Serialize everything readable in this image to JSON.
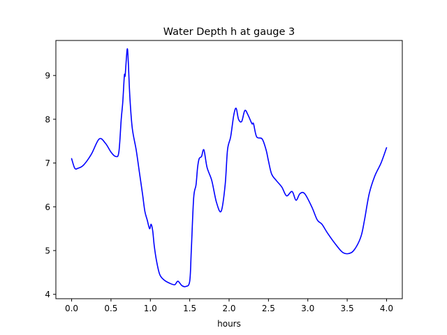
{
  "chart_data": {
    "type": "line",
    "title": "Water Depth h at gauge 3",
    "xlabel": "hours",
    "ylabel": "",
    "xlim": [
      -0.2,
      4.2
    ],
    "ylim": [
      3.9,
      9.8
    ],
    "xticks": [
      0.0,
      0.5,
      1.0,
      1.5,
      2.0,
      2.5,
      3.0,
      3.5,
      4.0
    ],
    "xtick_labels": [
      "0.0",
      "0.5",
      "1.0",
      "1.5",
      "2.0",
      "2.5",
      "3.0",
      "3.5",
      "4.0"
    ],
    "yticks": [
      4,
      5,
      6,
      7,
      8,
      9
    ],
    "ytick_labels": [
      "4",
      "5",
      "6",
      "7",
      "8",
      "9"
    ],
    "grid": false,
    "series": [
      {
        "color": "#0000ff",
        "x": [
          0.0,
          0.04,
          0.08,
          0.15,
          0.25,
          0.35,
          0.43,
          0.5,
          0.56,
          0.6,
          0.63,
          0.65,
          0.67,
          0.68,
          0.7,
          0.71,
          0.72,
          0.74,
          0.77,
          0.82,
          0.86,
          0.9,
          0.93,
          0.96,
          0.99,
          1.01,
          1.03,
          1.05,
          1.08,
          1.12,
          1.18,
          1.25,
          1.31,
          1.35,
          1.4,
          1.45,
          1.5,
          1.52,
          1.55,
          1.58,
          1.6,
          1.62,
          1.65,
          1.68,
          1.72,
          1.78,
          1.84,
          1.9,
          1.95,
          1.98,
          2.02,
          2.06,
          2.09,
          2.12,
          2.16,
          2.2,
          2.24,
          2.29,
          2.31,
          2.35,
          2.42,
          2.47,
          2.5,
          2.54,
          2.6,
          2.67,
          2.73,
          2.8,
          2.85,
          2.9,
          2.96,
          3.05,
          3.12,
          3.18,
          3.25,
          3.35,
          3.45,
          3.55,
          3.62,
          3.68,
          3.72,
          3.78,
          3.85,
          3.93,
          4.0
        ],
        "y": [
          7.1,
          6.88,
          6.88,
          6.95,
          7.2,
          7.55,
          7.45,
          7.25,
          7.15,
          7.25,
          8.0,
          8.4,
          9.0,
          9.0,
          9.5,
          9.6,
          9.3,
          8.5,
          7.8,
          7.3,
          6.8,
          6.3,
          5.9,
          5.7,
          5.5,
          5.6,
          5.45,
          5.1,
          4.75,
          4.45,
          4.32,
          4.25,
          4.22,
          4.3,
          4.2,
          4.18,
          4.3,
          5.0,
          6.2,
          6.5,
          6.9,
          7.1,
          7.15,
          7.3,
          6.9,
          6.6,
          6.1,
          5.9,
          6.5,
          7.3,
          7.6,
          8.1,
          8.25,
          8.0,
          7.95,
          8.2,
          8.1,
          7.9,
          7.9,
          7.6,
          7.55,
          7.3,
          7.05,
          6.75,
          6.6,
          6.45,
          6.25,
          6.35,
          6.15,
          6.3,
          6.3,
          6.0,
          5.7,
          5.6,
          5.4,
          5.15,
          4.95,
          4.95,
          5.1,
          5.35,
          5.7,
          6.3,
          6.7,
          7.0,
          7.35
        ]
      }
    ]
  }
}
